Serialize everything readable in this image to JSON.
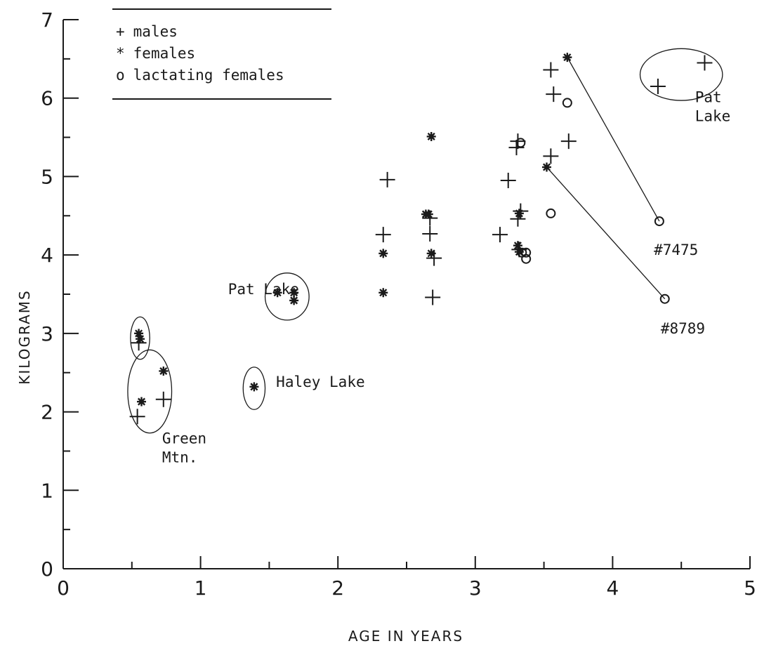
{
  "chart_data": {
    "type": "scatter",
    "title": "",
    "xlabel": "AGE IN YEARS",
    "ylabel": "KILOGRAMS",
    "xlim": [
      0,
      5
    ],
    "ylim": [
      0,
      7
    ],
    "xticks": [
      "0",
      "1",
      "2",
      "3",
      "4",
      "5"
    ],
    "yticks": [
      "0",
      "1",
      "2",
      "3",
      "4",
      "5",
      "6",
      "7"
    ],
    "grid": false,
    "legend_position": "top-left",
    "legend": [
      {
        "marker": "+",
        "label": "males"
      },
      {
        "marker": "*",
        "label": "females"
      },
      {
        "marker": "o",
        "label": "lactating females"
      }
    ],
    "series": [
      {
        "name": "males",
        "marker": "plus",
        "points": [
          [
            0.54,
            1.94
          ],
          [
            0.73,
            2.16
          ],
          [
            0.55,
            2.88
          ],
          [
            2.33,
            4.26
          ],
          [
            2.36,
            4.96
          ],
          [
            2.67,
            4.47
          ],
          [
            2.67,
            4.27
          ],
          [
            2.7,
            3.96
          ],
          [
            2.69,
            3.46
          ],
          [
            3.18,
            4.26
          ],
          [
            3.24,
            4.95
          ],
          [
            3.3,
            5.37
          ],
          [
            3.31,
            5.45
          ],
          [
            3.33,
            4.56
          ],
          [
            3.31,
            4.46
          ],
          [
            3.32,
            4.07
          ],
          [
            3.55,
            6.36
          ],
          [
            3.57,
            6.05
          ],
          [
            3.55,
            5.26
          ],
          [
            3.68,
            5.45
          ],
          [
            4.33,
            6.15
          ],
          [
            4.67,
            6.45
          ]
        ]
      },
      {
        "name": "females",
        "marker": "asterisk",
        "points": [
          [
            0.55,
            3.0
          ],
          [
            0.56,
            2.93
          ],
          [
            0.57,
            2.13
          ],
          [
            0.73,
            2.52
          ],
          [
            1.39,
            2.32
          ],
          [
            1.56,
            3.52
          ],
          [
            1.68,
            3.52
          ],
          [
            1.68,
            3.42
          ],
          [
            2.33,
            4.02
          ],
          [
            2.33,
            3.52
          ],
          [
            2.64,
            4.52
          ],
          [
            2.66,
            4.52
          ],
          [
            2.68,
            5.51
          ],
          [
            2.68,
            4.02
          ],
          [
            3.32,
            4.53
          ],
          [
            3.31,
            4.12
          ],
          [
            3.32,
            4.04
          ],
          [
            3.52,
            5.12
          ],
          [
            3.67,
            6.52
          ]
        ]
      },
      {
        "name": "lactating females",
        "marker": "circle",
        "points": [
          [
            3.33,
            5.43
          ],
          [
            3.34,
            4.03
          ],
          [
            3.37,
            4.03
          ],
          [
            3.37,
            3.95
          ],
          [
            3.55,
            4.53
          ],
          [
            3.67,
            5.94
          ],
          [
            4.34,
            4.43
          ],
          [
            4.38,
            3.44
          ]
        ]
      }
    ],
    "annotations": [
      {
        "lines": [
          "Pat Lake"
        ],
        "x": 1.2,
        "y": 3.5
      },
      {
        "lines": [
          "Haley Lake"
        ],
        "x": 1.55,
        "y": 2.32
      },
      {
        "lines": [
          "Green",
          "Mtn."
        ],
        "x": 0.72,
        "y": 1.6
      },
      {
        "lines": [
          "Pat",
          "Lake"
        ],
        "x": 4.6,
        "y": 5.95
      },
      {
        "lines": [
          "#7475"
        ],
        "x": 4.3,
        "y": 4.0
      },
      {
        "lines": [
          "#8789"
        ],
        "x": 4.35,
        "y": 3.0
      }
    ],
    "connectors": [
      {
        "from": [
          3.67,
          6.52
        ],
        "to": [
          4.34,
          4.43
        ]
      },
      {
        "from": [
          3.52,
          5.12
        ],
        "to": [
          4.38,
          3.44
        ]
      }
    ],
    "groups": [
      {
        "label": "Pat Lake",
        "center": [
          1.63,
          3.47
        ],
        "radius": [
          0.16,
          0.3
        ]
      },
      {
        "label": "Haley Lake",
        "center": [
          1.39,
          2.3
        ],
        "radius": [
          0.08,
          0.27
        ]
      },
      {
        "label": "Green Mtn.",
        "center": [
          0.63,
          2.26
        ],
        "radius": [
          0.16,
          0.53
        ]
      },
      {
        "label": "",
        "center": [
          0.56,
          2.94
        ],
        "radius": [
          0.07,
          0.27
        ]
      },
      {
        "label": "Pat Lake",
        "center": [
          4.5,
          6.3
        ],
        "radius": [
          0.3,
          0.33
        ]
      }
    ]
  }
}
